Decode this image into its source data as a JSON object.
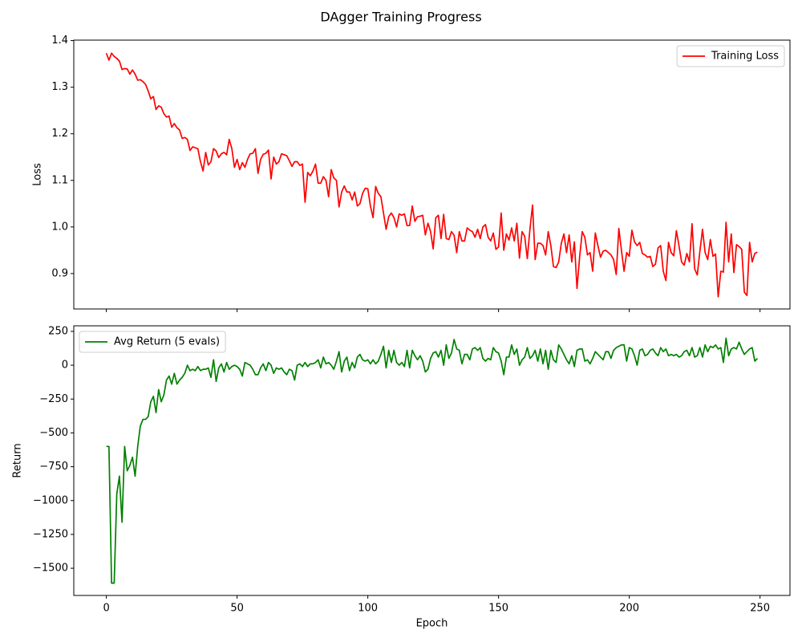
{
  "title": "DAgger Training Progress",
  "chart_data": [
    {
      "type": "line",
      "ylabel": "Loss",
      "legend": "upper right",
      "xlim": [
        -12.45,
        261.45
      ],
      "ylim": [
        0.824,
        1.401
      ],
      "xticks": [
        0,
        50,
        100,
        150,
        200,
        250
      ],
      "yticks": [
        0.9,
        {
          "value": 1,
          "label": "1.0"
        },
        1.1,
        1.2,
        1.3,
        1.4
      ],
      "x": [
        0,
        1,
        2,
        3,
        4,
        5,
        6,
        7,
        8,
        9,
        10,
        11,
        12,
        13,
        14,
        15,
        16,
        17,
        18,
        19,
        20,
        21,
        22,
        23,
        24,
        25,
        26,
        27,
        28,
        29,
        30,
        31,
        32,
        33,
        34,
        35,
        36,
        37,
        38,
        39,
        40,
        41,
        42,
        43,
        44,
        45,
        46,
        47,
        48,
        49,
        50,
        51,
        52,
        53,
        54,
        55,
        56,
        57,
        58,
        59,
        60,
        61,
        62,
        63,
        64,
        65,
        66,
        67,
        68,
        69,
        70,
        71,
        72,
        73,
        74,
        75,
        76,
        77,
        78,
        79,
        80,
        81,
        82,
        83,
        84,
        85,
        86,
        87,
        88,
        89,
        90,
        91,
        92,
        93,
        94,
        95,
        96,
        97,
        98,
        99,
        100,
        101,
        102,
        103,
        104,
        105,
        106,
        107,
        108,
        109,
        110,
        111,
        112,
        113,
        114,
        115,
        116,
        117,
        118,
        119,
        120,
        121,
        122,
        123,
        124,
        125,
        126,
        127,
        128,
        129,
        130,
        131,
        132,
        133,
        134,
        135,
        136,
        137,
        138,
        139,
        140,
        141,
        142,
        143,
        144,
        145,
        146,
        147,
        148,
        149,
        150,
        151,
        152,
        153,
        154,
        155,
        156,
        157,
        158,
        159,
        160,
        161,
        162,
        163,
        164,
        165,
        166,
        167,
        168,
        169,
        170,
        171,
        172,
        173,
        174,
        175,
        176,
        177,
        178,
        179,
        180,
        181,
        182,
        183,
        184,
        185,
        186,
        187,
        188,
        189,
        190,
        191,
        192,
        193,
        194,
        195,
        196,
        197,
        198,
        199,
        200,
        201,
        202,
        203,
        204,
        205,
        206,
        207,
        208,
        209,
        210,
        211,
        212,
        213,
        214,
        215,
        216,
        217,
        218,
        219,
        220,
        221,
        222,
        223,
        224,
        225,
        226,
        227,
        228,
        229,
        230,
        231,
        232,
        233,
        234,
        235,
        236,
        237,
        238,
        239,
        240,
        241,
        242,
        243,
        244,
        245,
        246,
        247,
        248,
        249
      ],
      "series": [
        {
          "name": "Training Loss",
          "color": "#ff0000",
          "values": [
            1.373,
            1.358,
            1.373,
            1.366,
            1.362,
            1.356,
            1.338,
            1.34,
            1.339,
            1.328,
            1.337,
            1.328,
            1.315,
            1.316,
            1.312,
            1.306,
            1.292,
            1.275,
            1.28,
            1.252,
            1.26,
            1.257,
            1.243,
            1.236,
            1.238,
            1.214,
            1.222,
            1.213,
            1.208,
            1.19,
            1.192,
            1.188,
            1.164,
            1.172,
            1.17,
            1.168,
            1.14,
            1.12,
            1.16,
            1.133,
            1.14,
            1.168,
            1.163,
            1.149,
            1.157,
            1.16,
            1.155,
            1.188,
            1.168,
            1.128,
            1.145,
            1.123,
            1.138,
            1.128,
            1.145,
            1.157,
            1.158,
            1.168,
            1.115,
            1.145,
            1.156,
            1.158,
            1.165,
            1.103,
            1.15,
            1.135,
            1.14,
            1.157,
            1.155,
            1.153,
            1.142,
            1.13,
            1.14,
            1.14,
            1.132,
            1.135,
            1.053,
            1.117,
            1.11,
            1.12,
            1.135,
            1.094,
            1.094,
            1.108,
            1.1,
            1.065,
            1.123,
            1.105,
            1.1,
            1.043,
            1.075,
            1.088,
            1.075,
            1.075,
            1.058,
            1.075,
            1.045,
            1.05,
            1.072,
            1.083,
            1.082,
            1.045,
            1.02,
            1.087,
            1.072,
            1.065,
            1.03,
            0.995,
            1.022,
            1.03,
            1.02,
            1.0,
            1.028,
            1.025,
            1.028,
            1.003,
            1.003,
            1.045,
            1.012,
            1.022,
            1.023,
            1.025,
            0.983,
            1.008,
            0.99,
            0.953,
            1.02,
            1.025,
            0.975,
            1.027,
            0.975,
            0.973,
            0.99,
            0.982,
            0.945,
            0.99,
            0.97,
            0.97,
            0.998,
            0.993,
            0.99,
            0.978,
            0.995,
            0.975,
            1.0,
            1.005,
            0.978,
            0.97,
            0.987,
            0.952,
            0.957,
            1.03,
            0.95,
            0.985,
            0.972,
            0.998,
            0.97,
            1.008,
            0.933,
            0.99,
            0.98,
            0.932,
            0.995,
            1.047,
            0.93,
            0.965,
            0.965,
            0.96,
            0.94,
            0.99,
            0.96,
            0.915,
            0.913,
            0.925,
            0.965,
            0.985,
            0.945,
            0.983,
            0.925,
            0.968,
            0.868,
            0.935,
            0.99,
            0.978,
            0.94,
            0.945,
            0.905,
            0.987,
            0.96,
            0.935,
            0.948,
            0.95,
            0.945,
            0.94,
            0.93,
            0.898,
            0.997,
            0.95,
            0.905,
            0.945,
            0.937,
            0.993,
            0.968,
            0.96,
            0.967,
            0.943,
            0.94,
            0.935,
            0.937,
            0.915,
            0.92,
            0.955,
            0.96,
            0.905,
            0.885,
            0.967,
            0.945,
            0.938,
            0.992,
            0.96,
            0.925,
            0.918,
            0.943,
            0.925,
            1.007,
            0.91,
            0.897,
            0.948,
            0.995,
            0.945,
            0.93,
            0.973,
            0.937,
            0.942,
            0.85,
            0.905,
            0.903,
            1.01,
            0.925,
            0.985,
            0.902,
            0.962,
            0.958,
            0.952,
            0.86,
            0.853,
            0.967,
            0.925,
            0.943,
            0.946
          ]
        }
      ]
    },
    {
      "type": "line",
      "xlabel": "Epoch",
      "ylabel": "Return",
      "legend": "upper left",
      "xlim": [
        -12.45,
        261.45
      ],
      "ylim": [
        -1701,
        291
      ],
      "xticks": [
        0,
        50,
        100,
        150,
        200,
        250
      ],
      "yticks": [
        {
          "value": -1500,
          "label": "−1500"
        },
        {
          "value": -1250,
          "label": "−1250"
        },
        {
          "value": -1000,
          "label": "−1000"
        },
        {
          "value": -750,
          "label": "−750"
        },
        {
          "value": -500,
          "label": "−500"
        },
        {
          "value": -250,
          "label": "−250"
        },
        0,
        250
      ],
      "x": [
        0,
        1,
        2,
        3,
        4,
        5,
        6,
        7,
        8,
        9,
        10,
        11,
        12,
        13,
        14,
        15,
        16,
        17,
        18,
        19,
        20,
        21,
        22,
        23,
        24,
        25,
        26,
        27,
        28,
        29,
        30,
        31,
        32,
        33,
        34,
        35,
        36,
        37,
        38,
        39,
        40,
        41,
        42,
        43,
        44,
        45,
        46,
        47,
        48,
        49,
        50,
        51,
        52,
        53,
        54,
        55,
        56,
        57,
        58,
        59,
        60,
        61,
        62,
        63,
        64,
        65,
        66,
        67,
        68,
        69,
        70,
        71,
        72,
        73,
        74,
        75,
        76,
        77,
        78,
        79,
        80,
        81,
        82,
        83,
        84,
        85,
        86,
        87,
        88,
        89,
        90,
        91,
        92,
        93,
        94,
        95,
        96,
        97,
        98,
        99,
        100,
        101,
        102,
        103,
        104,
        105,
        106,
        107,
        108,
        109,
        110,
        111,
        112,
        113,
        114,
        115,
        116,
        117,
        118,
        119,
        120,
        121,
        122,
        123,
        124,
        125,
        126,
        127,
        128,
        129,
        130,
        131,
        132,
        133,
        134,
        135,
        136,
        137,
        138,
        139,
        140,
        141,
        142,
        143,
        144,
        145,
        146,
        147,
        148,
        149,
        150,
        151,
        152,
        153,
        154,
        155,
        156,
        157,
        158,
        159,
        160,
        161,
        162,
        163,
        164,
        165,
        166,
        167,
        168,
        169,
        170,
        171,
        172,
        173,
        174,
        175,
        176,
        177,
        178,
        179,
        180,
        181,
        182,
        183,
        184,
        185,
        186,
        187,
        188,
        189,
        190,
        191,
        192,
        193,
        194,
        195,
        196,
        197,
        198,
        199,
        200,
        201,
        202,
        203,
        204,
        205,
        206,
        207,
        208,
        209,
        210,
        211,
        212,
        213,
        214,
        215,
        216,
        217,
        218,
        219,
        220,
        221,
        222,
        223,
        224,
        225,
        226,
        227,
        228,
        229,
        230,
        231,
        232,
        233,
        234,
        235,
        236,
        237,
        238,
        239,
        240,
        241,
        242,
        243,
        244,
        245,
        246,
        247,
        248,
        249
      ],
      "series": [
        {
          "name": "Avg Return (5 evals)",
          "color": "#008000",
          "values": [
            -600,
            -600,
            -1610,
            -1610,
            -950,
            -820,
            -1160,
            -600,
            -780,
            -740,
            -680,
            -820,
            -600,
            -450,
            -400,
            -400,
            -380,
            -270,
            -230,
            -350,
            -180,
            -270,
            -220,
            -110,
            -80,
            -140,
            -60,
            -140,
            -110,
            -90,
            -60,
            0,
            -40,
            -30,
            -40,
            -10,
            -40,
            -30,
            -30,
            -20,
            -90,
            40,
            -120,
            -20,
            10,
            -50,
            20,
            -30,
            -10,
            0,
            -10,
            -30,
            -80,
            20,
            10,
            0,
            -30,
            -70,
            -70,
            -20,
            10,
            -40,
            20,
            0,
            -60,
            -20,
            -30,
            -20,
            -50,
            -70,
            -30,
            -40,
            -110,
            0,
            10,
            -10,
            20,
            -10,
            10,
            10,
            20,
            40,
            -20,
            60,
            10,
            20,
            0,
            -30,
            30,
            100,
            -50,
            30,
            60,
            -40,
            20,
            -20,
            60,
            80,
            40,
            30,
            40,
            10,
            40,
            10,
            30,
            80,
            140,
            -20,
            110,
            20,
            110,
            20,
            0,
            20,
            -10,
            110,
            -20,
            110,
            70,
            40,
            70,
            30,
            -50,
            -30,
            50,
            90,
            100,
            60,
            110,
            0,
            150,
            50,
            90,
            190,
            120,
            110,
            10,
            80,
            80,
            40,
            120,
            130,
            110,
            130,
            50,
            30,
            50,
            40,
            130,
            100,
            90,
            30,
            -70,
            60,
            60,
            150,
            80,
            120,
            0,
            40,
            60,
            130,
            50,
            70,
            110,
            30,
            120,
            10,
            110,
            -30,
            110,
            40,
            20,
            150,
            120,
            80,
            40,
            10,
            70,
            -10,
            110,
            120,
            120,
            30,
            40,
            10,
            50,
            100,
            80,
            60,
            40,
            100,
            100,
            50,
            110,
            130,
            140,
            150,
            150,
            30,
            130,
            120,
            70,
            0,
            110,
            120,
            70,
            80,
            110,
            120,
            90,
            70,
            130,
            100,
            120,
            70,
            80,
            70,
            80,
            60,
            70,
            100,
            110,
            70,
            130,
            60,
            70,
            130,
            60,
            150,
            100,
            140,
            130,
            150,
            120,
            130,
            20,
            200,
            70,
            120,
            130,
            120,
            170,
            120,
            80,
            100,
            120,
            130,
            30,
            50
          ]
        }
      ]
    }
  ]
}
